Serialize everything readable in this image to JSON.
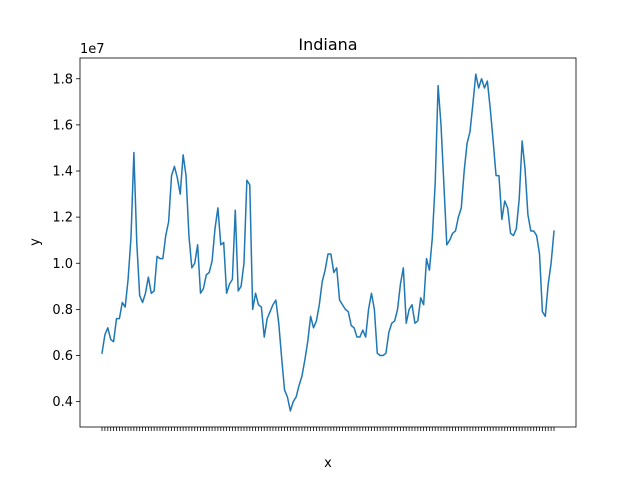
{
  "chart_data": {
    "type": "line",
    "title": "Indiana",
    "xlabel": "x",
    "ylabel": "y",
    "y_offset_label": "1e7",
    "y_ticks": [
      0.4,
      0.6,
      0.8,
      1.0,
      1.2,
      1.4,
      1.6,
      1.8
    ],
    "y_tick_labels": [
      "0.4",
      "0.6",
      "0.8",
      "1.0",
      "1.2",
      "1.4",
      "1.6",
      "1.8"
    ],
    "ylim": [
      0.29,
      1.89
    ],
    "grid": false,
    "x_tick_labels_illegible": true,
    "series": [
      {
        "color": "#1f77b4",
        "values": [
          0.61,
          0.69,
          0.72,
          0.67,
          0.66,
          0.76,
          0.76,
          0.83,
          0.81,
          0.93,
          1.11,
          1.48,
          1.09,
          0.86,
          0.83,
          0.87,
          0.94,
          0.87,
          0.88,
          1.03,
          1.02,
          1.02,
          1.12,
          1.18,
          1.38,
          1.42,
          1.37,
          1.3,
          1.47,
          1.38,
          1.12,
          0.98,
          1.0,
          1.08,
          0.87,
          0.89,
          0.95,
          0.96,
          1.01,
          1.15,
          1.24,
          1.08,
          1.09,
          0.87,
          0.91,
          0.93,
          1.23,
          0.88,
          0.9,
          1.0,
          1.36,
          1.34,
          0.8,
          0.87,
          0.82,
          0.81,
          0.68,
          0.76,
          0.79,
          0.82,
          0.84,
          0.74,
          0.59,
          0.45,
          0.42,
          0.36,
          0.4,
          0.42,
          0.47,
          0.51,
          0.58,
          0.66,
          0.77,
          0.72,
          0.75,
          0.82,
          0.92,
          0.97,
          1.04,
          1.04,
          0.96,
          0.98,
          0.84,
          0.82,
          0.8,
          0.79,
          0.73,
          0.72,
          0.68,
          0.68,
          0.71,
          0.68,
          0.8,
          0.87,
          0.8,
          0.61,
          0.6,
          0.6,
          0.61,
          0.7,
          0.74,
          0.75,
          0.8,
          0.91,
          0.98,
          0.74,
          0.8,
          0.82,
          0.74,
          0.75,
          0.85,
          0.82,
          1.02,
          0.97,
          1.11,
          1.35,
          1.77,
          1.6,
          1.34,
          1.08,
          1.1,
          1.13,
          1.14,
          1.2,
          1.24,
          1.4,
          1.52,
          1.57,
          1.69,
          1.82,
          1.76,
          1.8,
          1.76,
          1.79,
          1.67,
          1.53,
          1.38,
          1.38,
          1.19,
          1.27,
          1.24,
          1.13,
          1.12,
          1.15,
          1.28,
          1.53,
          1.41,
          1.21,
          1.14,
          1.14,
          1.12,
          1.04,
          0.79,
          0.77,
          0.91,
          1.0,
          1.14
        ]
      }
    ]
  }
}
